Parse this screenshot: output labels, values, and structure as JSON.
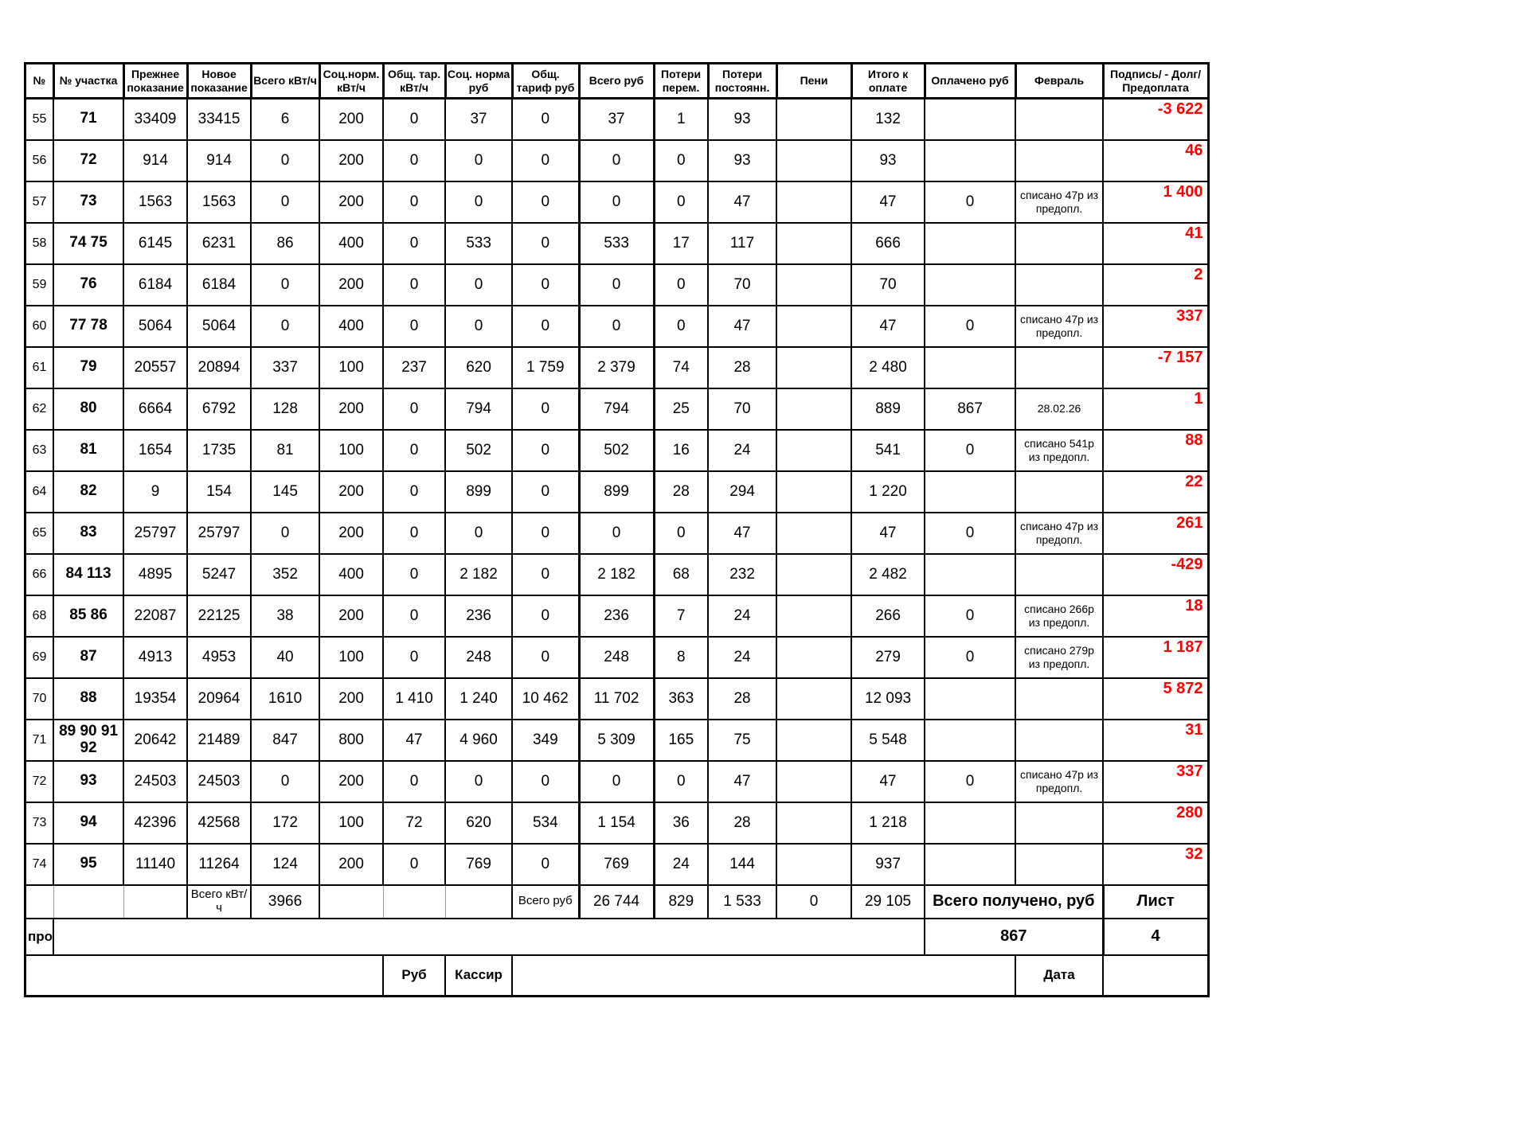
{
  "table": {
    "headers": [
      "№",
      "№ участка",
      "Прежнее показание",
      "Новое показание",
      "Всего кВт/ч",
      "Соц.норм. кВт/ч",
      "Общ. тар. кВт/ч",
      "Соц. норма руб",
      "Общ. тариф руб",
      "Всего руб",
      "Потери перем.",
      "Потери постоянн.",
      "Пени",
      "Итого к оплате",
      "Оплачено руб",
      "Февраль",
      "Подпись/ - Долг/Предоплата"
    ],
    "rows": [
      [
        "55",
        "71",
        "33409",
        "33415",
        "6",
        "200",
        "0",
        "37",
        "0",
        "37",
        "1",
        "93",
        "",
        "132",
        "",
        "",
        "-3 622"
      ],
      [
        "56",
        "72",
        "914",
        "914",
        "0",
        "200",
        "0",
        "0",
        "0",
        "0",
        "0",
        "93",
        "",
        "93",
        "",
        "",
        "46"
      ],
      [
        "57",
        "73",
        "1563",
        "1563",
        "0",
        "200",
        "0",
        "0",
        "0",
        "0",
        "0",
        "47",
        "",
        "47",
        "0",
        "списано 47р из предопл.",
        "1 400"
      ],
      [
        "58",
        "74 75",
        "6145",
        "6231",
        "86",
        "400",
        "0",
        "533",
        "0",
        "533",
        "17",
        "117",
        "",
        "666",
        "",
        "",
        "41"
      ],
      [
        "59",
        "76",
        "6184",
        "6184",
        "0",
        "200",
        "0",
        "0",
        "0",
        "0",
        "0",
        "70",
        "",
        "70",
        "",
        "",
        "2"
      ],
      [
        "60",
        "77 78",
        "5064",
        "5064",
        "0",
        "400",
        "0",
        "0",
        "0",
        "0",
        "0",
        "47",
        "",
        "47",
        "0",
        "списано 47р из предопл.",
        "337"
      ],
      [
        "61",
        "79",
        "20557",
        "20894",
        "337",
        "100",
        "237",
        "620",
        "1 759",
        "2 379",
        "74",
        "28",
        "",
        "2 480",
        "",
        "",
        "-7 157"
      ],
      [
        "62",
        "80",
        "6664",
        "6792",
        "128",
        "200",
        "0",
        "794",
        "0",
        "794",
        "25",
        "70",
        "",
        "889",
        "867",
        "28.02.26",
        "1"
      ],
      [
        "63",
        "81",
        "1654",
        "1735",
        "81",
        "100",
        "0",
        "502",
        "0",
        "502",
        "16",
        "24",
        "",
        "541",
        "0",
        "списано 541р из предопл.",
        "88"
      ],
      [
        "64",
        "82",
        "9",
        "154",
        "145",
        "200",
        "0",
        "899",
        "0",
        "899",
        "28",
        "294",
        "",
        "1 220",
        "",
        "",
        "22"
      ],
      [
        "65",
        "83",
        "25797",
        "25797",
        "0",
        "200",
        "0",
        "0",
        "0",
        "0",
        "0",
        "47",
        "",
        "47",
        "0",
        "списано 47р из предопл.",
        "261"
      ],
      [
        "66",
        "84 113",
        "4895",
        "5247",
        "352",
        "400",
        "0",
        "2 182",
        "0",
        "2 182",
        "68",
        "232",
        "",
        "2 482",
        "",
        "",
        "-429"
      ],
      [
        "68",
        "85 86",
        "22087",
        "22125",
        "38",
        "200",
        "0",
        "236",
        "0",
        "236",
        "7",
        "24",
        "",
        "266",
        "0",
        "списано 266р из предопл.",
        "18"
      ],
      [
        "69",
        "87",
        "4913",
        "4953",
        "40",
        "100",
        "0",
        "248",
        "0",
        "248",
        "8",
        "24",
        "",
        "279",
        "0",
        "списано 279р из предопл.",
        "1 187"
      ],
      [
        "70",
        "88",
        "19354",
        "20964",
        "1610",
        "200",
        "1 410",
        "1 240",
        "10 462",
        "11 702",
        "363",
        "28",
        "",
        "12 093",
        "",
        "",
        "5 872"
      ],
      [
        "71",
        "89 90 91 92",
        "20642",
        "21489",
        "847",
        "800",
        "47",
        "4 960",
        "349",
        "5 309",
        "165",
        "75",
        "",
        "5 548",
        "",
        "",
        "31"
      ],
      [
        "72",
        "93",
        "24503",
        "24503",
        "0",
        "200",
        "0",
        "0",
        "0",
        "0",
        "0",
        "47",
        "",
        "47",
        "0",
        "списано 47р из предопл.",
        "337"
      ],
      [
        "73",
        "94",
        "42396",
        "42568",
        "172",
        "100",
        "72",
        "620",
        "534",
        "1 154",
        "36",
        "28",
        "",
        "1 218",
        "",
        "",
        "280"
      ],
      [
        "74",
        "95",
        "11140",
        "11264",
        "124",
        "200",
        "0",
        "769",
        "0",
        "769",
        "24",
        "144",
        "",
        "937",
        "",
        "",
        "32"
      ]
    ],
    "totals": {
      "kwh_label": "Всего кВт/ч",
      "kwh_value": "3966",
      "rub_label": "Всего руб",
      "total_rub": "26 744",
      "loss_variable": "829",
      "loss_constant": "1 533",
      "penalty": "0",
      "total_due": "29 105",
      "received_label": "Всего получено, руб",
      "sheet_label": "Лист"
    },
    "footer": {
      "pro": "про",
      "received_value": "867",
      "sheet_value": "4",
      "rub_label": "Руб",
      "cashier_label": "Кассир",
      "date_label": "Дата"
    }
  },
  "colors": {
    "debt_prepay_text": "#ff0000",
    "text": "#000000",
    "border": "#000000",
    "background": "#ffffff"
  }
}
